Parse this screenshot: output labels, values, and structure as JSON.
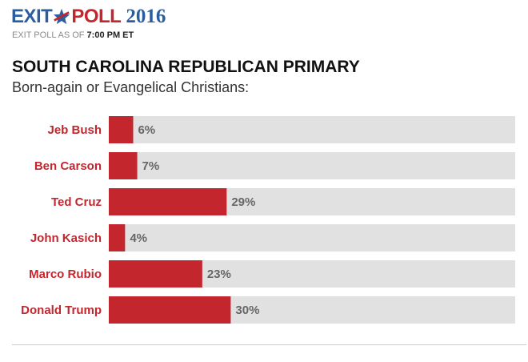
{
  "header": {
    "logo_exit": "EXIT",
    "logo_poll": "POLL",
    "logo_year": "2016",
    "asof_prefix": "EXIT POLL AS OF ",
    "asof_time": "7:00 PM ET"
  },
  "colors": {
    "bar": "#c4262e",
    "track": "#e1e1e1",
    "label": "#c4262e",
    "value": "#666666"
  },
  "chart_data": {
    "type": "bar",
    "orientation": "horizontal",
    "title": "SOUTH CAROLINA REPUBLICAN PRIMARY",
    "subtitle": "Born-again or Evangelical Christians:",
    "categories": [
      "Jeb Bush",
      "Ben Carson",
      "Ted Cruz",
      "John Kasich",
      "Marco Rubio",
      "Donald Trump"
    ],
    "values": [
      6,
      7,
      29,
      4,
      23,
      30
    ],
    "value_labels": [
      "6%",
      "7%",
      "29%",
      "4%",
      "23%",
      "30%"
    ],
    "xlim": [
      0,
      100
    ],
    "grid": false,
    "legend": "none"
  }
}
